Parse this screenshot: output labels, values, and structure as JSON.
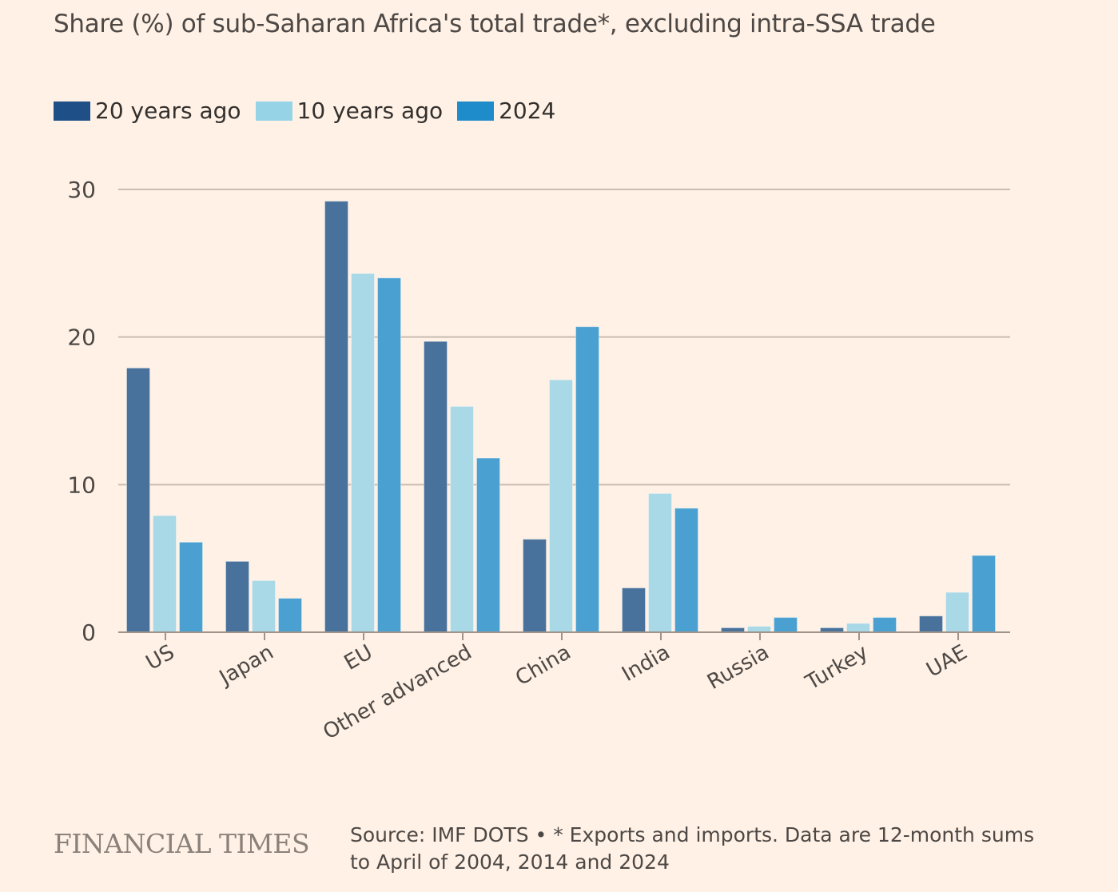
{
  "chart_data": {
    "type": "bar",
    "title": "Share (%) of sub-Saharan Africa's total trade*, excluding intra-SSA trade",
    "xlabel": "",
    "ylabel": "",
    "ylim": [
      0,
      30
    ],
    "yticks": [
      "0",
      "10",
      "20",
      "30"
    ],
    "ytick_values": [
      0,
      10,
      20,
      30
    ],
    "grid": true,
    "legend_position": "top-left",
    "categories": [
      "US",
      "Japan",
      "EU",
      "Other advanced",
      "China",
      "India",
      "Russia",
      "Turkey",
      "UAE"
    ],
    "series": [
      {
        "name": "20 years ago",
        "color": "#1e5087",
        "bar_color": "#48729b",
        "values": [
          17.9,
          4.8,
          29.2,
          19.7,
          6.3,
          3.0,
          0.3,
          0.3,
          1.1
        ]
      },
      {
        "name": "10 years ago",
        "color": "#96d3e6",
        "bar_color": "#a9d8e6",
        "values": [
          7.9,
          3.5,
          24.3,
          15.3,
          17.1,
          9.4,
          0.4,
          0.6,
          2.7
        ]
      },
      {
        "name": "2024",
        "color": "#1e8ccb",
        "bar_color": "#4aa1d1",
        "values": [
          6.1,
          2.3,
          24.0,
          11.8,
          20.7,
          8.4,
          1.0,
          1.0,
          5.2
        ]
      }
    ]
  },
  "footer": {
    "logo": "FINANCIAL TIMES",
    "note": "Source: IMF DOTS • * Exports and imports. Data are 12-month sums to April of 2004, 2014 and 2024"
  }
}
